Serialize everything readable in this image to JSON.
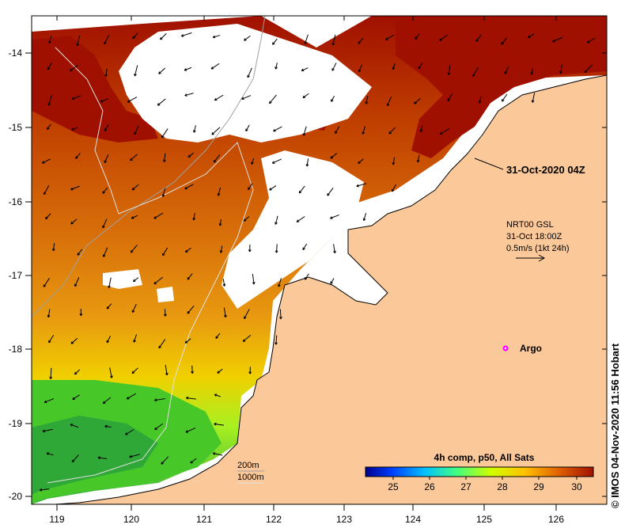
{
  "map": {
    "overlay_title": "31-Oct-2020 04Z",
    "vector_legend": {
      "line1": "NRT00 GSL",
      "line2": "31-Oct 18:00Z",
      "line3": "0.5m/s (1kt 24h)"
    },
    "argo_label": "Argo",
    "contour_legend": {
      "line1": "200m",
      "line2": "1000m"
    },
    "credit": "© IMOS 04-Nov-2020 11:56 Hobart",
    "x_ticks": [
      "119",
      "120",
      "121",
      "122",
      "123",
      "124",
      "125",
      "126"
    ],
    "y_ticks": [
      "-14",
      "-15",
      "-16",
      "-17",
      "-18",
      "-19",
      "-20"
    ],
    "colorbar": {
      "title": "4h comp, p50, All Sats",
      "ticks": [
        "25",
        "26",
        "27",
        "28",
        "29",
        "30"
      ],
      "colors": [
        "#00008f",
        "#0040ff",
        "#00c0ff",
        "#40ff80",
        "#d0ff00",
        "#ffc000",
        "#e06000",
        "#a01000"
      ]
    },
    "colors": {
      "land": "#fbc89a",
      "cloud": "#ffffff",
      "warm": "#a01000",
      "orange": "#d8700a",
      "gold": "#e8a000",
      "cool": "#50d020",
      "argo": "#ff00ff"
    }
  }
}
